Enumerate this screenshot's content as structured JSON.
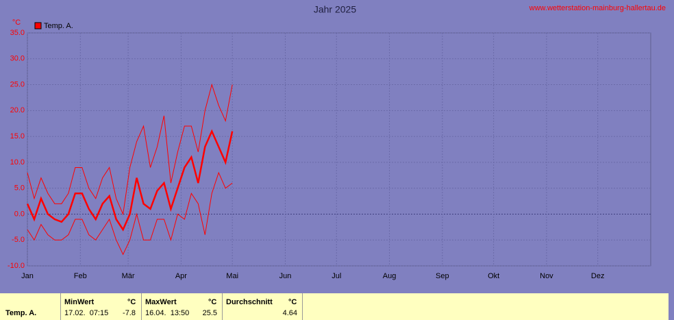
{
  "chart_data": {
    "type": "line",
    "title": "Jahr 2025",
    "source": "www.wetterstation-mainburg-hallertau.de",
    "y_unit": "°C",
    "legend": "top-left",
    "grid": true,
    "xlim": [
      0,
      365
    ],
    "xticks": [
      {
        "value": 0,
        "label": "Jan"
      },
      {
        "value": 31,
        "label": "Feb"
      },
      {
        "value": 59,
        "label": "Mär"
      },
      {
        "value": 90,
        "label": "Apr"
      },
      {
        "value": 120,
        "label": "Mai"
      },
      {
        "value": 151,
        "label": "Jun"
      },
      {
        "value": 181,
        "label": "Jul"
      },
      {
        "value": 212,
        "label": "Aug"
      },
      {
        "value": 243,
        "label": "Sep"
      },
      {
        "value": 273,
        "label": "Okt"
      },
      {
        "value": 304,
        "label": "Nov"
      },
      {
        "value": 334,
        "label": "Dez"
      }
    ],
    "ylim": [
      -10,
      35
    ],
    "yticks": [
      {
        "value": -10,
        "label": "-10.0"
      },
      {
        "value": -5,
        "label": "-5.0"
      },
      {
        "value": 0,
        "label": "0.0"
      },
      {
        "value": 5,
        "label": "5.0"
      },
      {
        "value": 10,
        "label": "10.0"
      },
      {
        "value": 15,
        "label": "15.0"
      },
      {
        "value": 20,
        "label": "20.0"
      },
      {
        "value": 25,
        "label": "25.0"
      },
      {
        "value": 30,
        "label": "30.0"
      },
      {
        "value": 35,
        "label": "35.0"
      }
    ],
    "x": [
      0,
      4,
      8,
      12,
      16,
      20,
      24,
      28,
      32,
      36,
      40,
      44,
      48,
      52,
      56,
      60,
      64,
      68,
      72,
      76,
      80,
      84,
      88,
      92,
      96,
      100,
      104,
      108,
      112,
      116,
      120
    ],
    "series": [
      {
        "name": "Temp. A.",
        "color": "#ff0000",
        "values": [
          2,
          -1,
          3,
          0,
          -1,
          -1.5,
          0,
          4,
          4,
          1,
          -1,
          2,
          3.5,
          -1,
          -3,
          0,
          7,
          2,
          1,
          4.5,
          6,
          1,
          5,
          9,
          11,
          6,
          13,
          16,
          13,
          10,
          16
        ],
        "high": [
          8,
          3,
          7,
          4,
          2,
          2,
          4,
          9,
          9,
          5,
          3,
          7,
          9,
          3,
          0,
          9,
          14,
          17,
          9,
          13,
          19,
          6,
          12,
          17,
          17,
          12,
          20,
          25,
          21,
          18,
          25
        ],
        "low": [
          -3,
          -5,
          -2,
          -4,
          -5,
          -5,
          -4,
          -1,
          -1,
          -4,
          -5,
          -3,
          -1,
          -5,
          -7.8,
          -5,
          0,
          -5,
          -5,
          -1,
          -1,
          -5,
          0,
          -1,
          4,
          2,
          -4,
          4,
          8,
          5,
          6
        ]
      }
    ]
  },
  "table": {
    "row_label": "Temp. A.",
    "columns": [
      {
        "header": "MinWert",
        "unit": "°C",
        "time": "17.02.  07:15",
        "value": "-7.8"
      },
      {
        "header": "MaxWert",
        "unit": "°C",
        "time": "16.04.  13:50",
        "value": "25.5"
      },
      {
        "header": "Durchschnitt",
        "unit": "°C",
        "value": "4.64"
      }
    ]
  }
}
